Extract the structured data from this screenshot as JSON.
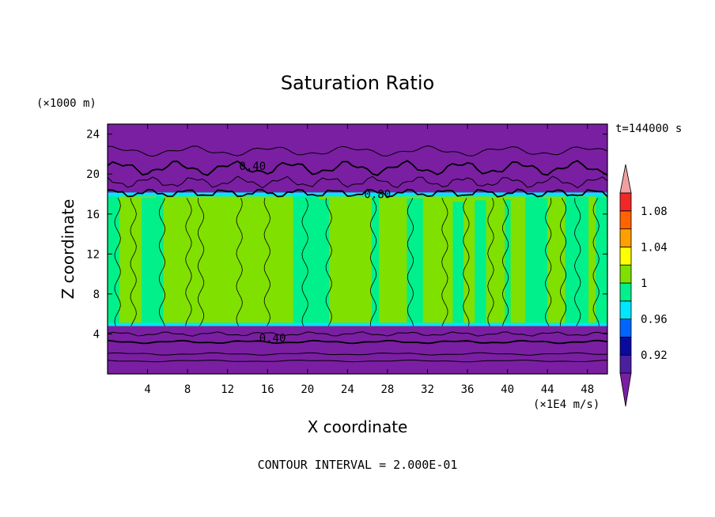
{
  "chart_data": {
    "type": "heatmap",
    "title": "Saturation Ratio",
    "xlabel": "X coordinate",
    "ylabel": "Z coordinate",
    "x_unit": "(×1E4 m/s)",
    "y_unit": "(×1000 m)",
    "time_label": "t=144000 s",
    "footer": "CONTOUR INTERVAL = 2.000E-01",
    "xlim": [
      0,
      50
    ],
    "ylim": [
      0,
      25
    ],
    "x_ticks": [
      "4",
      "8",
      "12",
      "16",
      "20",
      "24",
      "28",
      "32",
      "36",
      "40",
      "44",
      "48"
    ],
    "x_tick_values": [
      4,
      8,
      12,
      16,
      20,
      24,
      28,
      32,
      36,
      40,
      44,
      48
    ],
    "y_ticks": [
      "4",
      "8",
      "12",
      "16",
      "20",
      "24"
    ],
    "y_tick_values": [
      4,
      8,
      12,
      16,
      20,
      24
    ],
    "contour_labels": [
      "0.40",
      "0.80",
      "0.40"
    ],
    "contour_label_pos": [
      [
        14.5,
        20.4
      ],
      [
        27,
        17.6
      ],
      [
        16.5,
        3.2
      ]
    ],
    "colorbar": {
      "levels": [
        0.9,
        0.92,
        0.94,
        0.96,
        0.98,
        1.0,
        1.02,
        1.04,
        1.06,
        1.08,
        1.1
      ],
      "labels": [
        "0.92",
        "0.96",
        "1",
        "1.04",
        "1.08"
      ],
      "label_values": [
        0.92,
        0.96,
        1.0,
        1.04,
        1.08
      ],
      "colors": [
        "#4b1fa0",
        "#0a0aa0",
        "#0064ff",
        "#00e6ff",
        "#00f08c",
        "#80e000",
        "#ffff00",
        "#ffa000",
        "#ff6400",
        "#f02828"
      ],
      "under_color": "#7a1fa2",
      "over_color": "#f0a0a0"
    },
    "regions": {
      "upper_dry_layer_z": [
        18,
        25
      ],
      "cloud_layer_z": [
        4.8,
        18
      ],
      "lower_dry_layer_z": [
        0,
        4.8
      ]
    }
  }
}
